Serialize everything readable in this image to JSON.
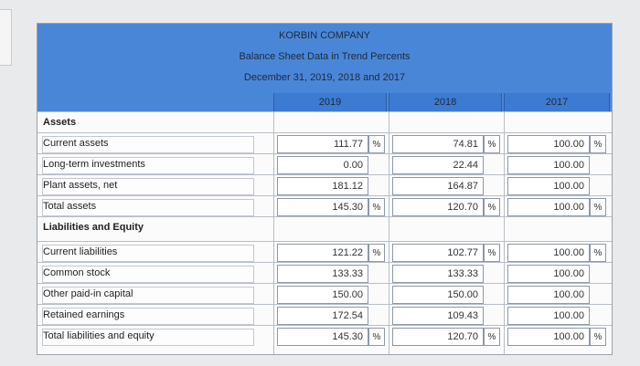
{
  "company": "KORBIN COMPANY",
  "report": "Balance Sheet Data in Trend Percents",
  "period": "December 31, 2019, 2018 and 2017",
  "years": [
    "2019",
    "2018",
    "2017"
  ],
  "pct_sign": "%",
  "rows": [
    {
      "label": "Assets"
    },
    {
      "label": "Current assets",
      "v2019": "111.77",
      "v2018": "74.81",
      "v2017": "100.00"
    },
    {
      "label": "Long-term investments",
      "v2019": "0.00",
      "v2018": "22.44",
      "v2017": "100.00"
    },
    {
      "label": "Plant assets, net",
      "v2019": "181.12",
      "v2018": "164.87",
      "v2017": "100.00"
    },
    {
      "label": "Total assets",
      "v2019": "145.30",
      "v2018": "120.70",
      "v2017": "100.00"
    },
    {
      "label": "Liabilities and Equity"
    },
    {
      "label": "Current liabilities",
      "v2019": "121.22",
      "v2018": "102.77",
      "v2017": "100.00"
    },
    {
      "label": "Common stock",
      "v2019": "133.33",
      "v2018": "133.33",
      "v2017": "100.00"
    },
    {
      "label": "Other paid-in capital",
      "v2019": "150.00",
      "v2018": "150.00",
      "v2017": "100.00"
    },
    {
      "label": "Retained earnings",
      "v2019": "172.54",
      "v2018": "109.43",
      "v2017": "100.00"
    },
    {
      "label": "Total liabilities and equity",
      "v2019": "145.30",
      "v2018": "120.70",
      "v2017": "100.00"
    }
  ]
}
